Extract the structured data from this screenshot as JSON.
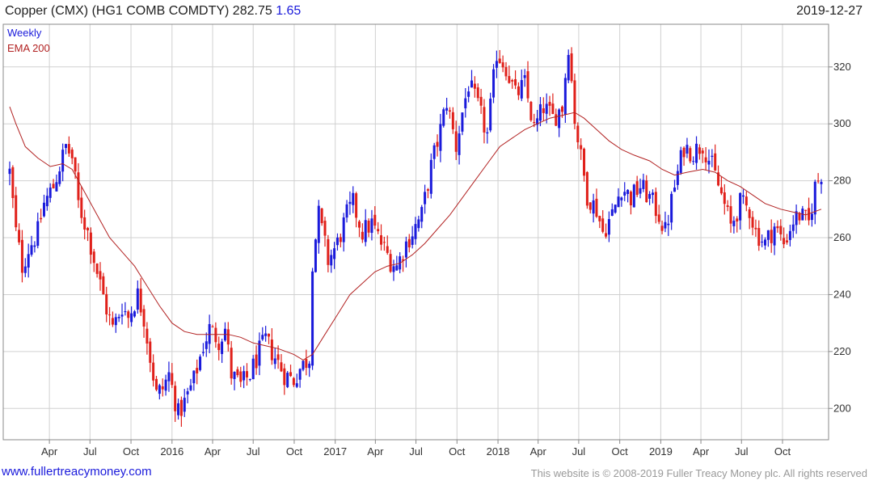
{
  "header": {
    "title": "Copper (CMX) (HG1 COMB COMDTY) 282.75",
    "change": "1.65",
    "date": "2019-12-27"
  },
  "footer": {
    "site": "www.fullertreacymoney.com",
    "copyright": "This website is © 2008-2019 Fuller Treacy Money plc. All rights reserved"
  },
  "colors": {
    "up": "#1a1adb",
    "down": "#e0201a",
    "ema": "#b22222",
    "grid": "#d0d0d0"
  },
  "chart_data": {
    "type": "candlestick",
    "frequency": "Weekly",
    "legend": [
      {
        "label": "Weekly",
        "color": "#1a1adb"
      },
      {
        "label": "EMA 200",
        "color": "#b22222"
      }
    ],
    "legend_position": "top-left",
    "y_axis_position": "right",
    "ylim": [
      189,
      335
    ],
    "y_ticks": [
      200,
      220,
      240,
      260,
      280,
      300,
      320
    ],
    "x_range": [
      "2015-01-02",
      "2019-12-27"
    ],
    "x_ticks": [
      {
        "date": "2015-04-01",
        "label": "Apr"
      },
      {
        "date": "2015-07-01",
        "label": "Jul"
      },
      {
        "date": "2015-10-01",
        "label": "Oct"
      },
      {
        "date": "2016-01-01",
        "label": "2016"
      },
      {
        "date": "2016-04-01",
        "label": "Apr"
      },
      {
        "date": "2016-07-01",
        "label": "Jul"
      },
      {
        "date": "2016-10-01",
        "label": "Oct"
      },
      {
        "date": "2017-01-01",
        "label": "2017"
      },
      {
        "date": "2017-04-01",
        "label": "Apr"
      },
      {
        "date": "2017-07-01",
        "label": "Jul"
      },
      {
        "date": "2017-10-01",
        "label": "Oct"
      },
      {
        "date": "2018-01-01",
        "label": "2018"
      },
      {
        "date": "2018-04-01",
        "label": "Apr"
      },
      {
        "date": "2018-07-01",
        "label": "Jul"
      },
      {
        "date": "2018-10-01",
        "label": "Oct"
      },
      {
        "date": "2019-01-01",
        "label": "2019"
      },
      {
        "date": "2019-04-01",
        "label": "Apr"
      },
      {
        "date": "2019-07-01",
        "label": "Jul"
      },
      {
        "date": "2019-10-01",
        "label": "Oct"
      }
    ],
    "price_path": [
      [
        "2015-01-02",
        283
      ],
      [
        "2015-01-16",
        262
      ],
      [
        "2015-01-30",
        250
      ],
      [
        "2015-02-13",
        256
      ],
      [
        "2015-03-06",
        262
      ],
      [
        "2015-03-20",
        272
      ],
      [
        "2015-04-10",
        278
      ],
      [
        "2015-05-08",
        292
      ],
      [
        "2015-05-22",
        288
      ],
      [
        "2015-06-05",
        272
      ],
      [
        "2015-06-26",
        262
      ],
      [
        "2015-07-17",
        248
      ],
      [
        "2015-08-07",
        235
      ],
      [
        "2015-08-21",
        228
      ],
      [
        "2015-09-11",
        236
      ],
      [
        "2015-09-25",
        232
      ],
      [
        "2015-10-16",
        240
      ],
      [
        "2015-10-30",
        232
      ],
      [
        "2015-11-13",
        218
      ],
      [
        "2015-11-27",
        205
      ],
      [
        "2015-12-11",
        207
      ],
      [
        "2015-12-25",
        212
      ],
      [
        "2016-01-15",
        198
      ],
      [
        "2016-01-29",
        202
      ],
      [
        "2016-02-19",
        210
      ],
      [
        "2016-03-11",
        222
      ],
      [
        "2016-03-25",
        228
      ],
      [
        "2016-04-15",
        224
      ],
      [
        "2016-04-29",
        228
      ],
      [
        "2016-05-13",
        212
      ],
      [
        "2016-06-03",
        208
      ],
      [
        "2016-06-24",
        212
      ],
      [
        "2016-07-15",
        220
      ],
      [
        "2016-07-29",
        224
      ],
      [
        "2016-08-19",
        218
      ],
      [
        "2016-09-09",
        212
      ],
      [
        "2016-09-30",
        210
      ],
      [
        "2016-10-14",
        214
      ],
      [
        "2016-11-04",
        218
      ],
      [
        "2016-11-11",
        252
      ],
      [
        "2016-11-25",
        268
      ],
      [
        "2016-12-16",
        252
      ],
      [
        "2017-01-06",
        258
      ],
      [
        "2017-01-27",
        268
      ],
      [
        "2017-02-10",
        272
      ],
      [
        "2017-03-03",
        262
      ],
      [
        "2017-03-24",
        265
      ],
      [
        "2017-04-14",
        258
      ],
      [
        "2017-05-05",
        252
      ],
      [
        "2017-05-19",
        250
      ],
      [
        "2017-06-09",
        258
      ],
      [
        "2017-06-30",
        264
      ],
      [
        "2017-07-14",
        268
      ],
      [
        "2017-08-04",
        285
      ],
      [
        "2017-08-25",
        298
      ],
      [
        "2017-09-08",
        308
      ],
      [
        "2017-09-29",
        292
      ],
      [
        "2017-10-13",
        304
      ],
      [
        "2017-10-27",
        314
      ],
      [
        "2017-11-17",
        306
      ],
      [
        "2017-12-08",
        296
      ],
      [
        "2017-12-29",
        325
      ],
      [
        "2018-01-19",
        320
      ],
      [
        "2018-02-09",
        310
      ],
      [
        "2018-03-02",
        314
      ],
      [
        "2018-03-23",
        298
      ],
      [
        "2018-04-13",
        306
      ],
      [
        "2018-05-04",
        302
      ],
      [
        "2018-05-25",
        306
      ],
      [
        "2018-06-08",
        328
      ],
      [
        "2018-06-22",
        302
      ],
      [
        "2018-07-06",
        288
      ],
      [
        "2018-07-20",
        275
      ],
      [
        "2018-08-10",
        270
      ],
      [
        "2018-08-24",
        262
      ],
      [
        "2018-09-14",
        268
      ],
      [
        "2018-10-05",
        278
      ],
      [
        "2018-10-26",
        274
      ],
      [
        "2018-11-16",
        278
      ],
      [
        "2018-12-07",
        274
      ],
      [
        "2018-12-28",
        268
      ],
      [
        "2019-01-11",
        262
      ],
      [
        "2019-02-01",
        278
      ],
      [
        "2019-02-22",
        292
      ],
      [
        "2019-03-15",
        290
      ],
      [
        "2019-04-05",
        293
      ],
      [
        "2019-04-26",
        285
      ],
      [
        "2019-05-17",
        275
      ],
      [
        "2019-06-07",
        264
      ],
      [
        "2019-06-28",
        272
      ],
      [
        "2019-07-19",
        270
      ],
      [
        "2019-08-02",
        262
      ],
      [
        "2019-08-23",
        258
      ],
      [
        "2019-09-13",
        264
      ],
      [
        "2019-10-04",
        258
      ],
      [
        "2019-10-25",
        266
      ],
      [
        "2019-11-08",
        268
      ],
      [
        "2019-11-29",
        265
      ],
      [
        "2019-12-13",
        278
      ],
      [
        "2019-12-27",
        282.75
      ]
    ],
    "ema_200": [
      [
        "2015-01-02",
        306
      ],
      [
        "2015-01-16",
        300
      ],
      [
        "2015-02-06",
        292
      ],
      [
        "2015-03-06",
        288
      ],
      [
        "2015-04-03",
        285
      ],
      [
        "2015-05-01",
        286
      ],
      [
        "2015-05-22",
        284
      ],
      [
        "2015-06-19",
        276
      ],
      [
        "2015-07-17",
        268
      ],
      [
        "2015-08-14",
        260
      ],
      [
        "2015-09-11",
        255
      ],
      [
        "2015-10-09",
        250
      ],
      [
        "2015-11-06",
        243
      ],
      [
        "2015-12-04",
        236
      ],
      [
        "2016-01-01",
        230
      ],
      [
        "2016-01-29",
        227
      ],
      [
        "2016-02-26",
        226
      ],
      [
        "2016-04-01",
        226
      ],
      [
        "2016-05-06",
        226
      ],
      [
        "2016-06-03",
        225
      ],
      [
        "2016-07-01",
        223
      ],
      [
        "2016-07-29",
        222
      ],
      [
        "2016-08-26",
        221
      ],
      [
        "2016-09-30",
        219
      ],
      [
        "2016-10-21",
        217
      ],
      [
        "2016-11-11",
        219
      ],
      [
        "2016-12-09",
        226
      ],
      [
        "2017-01-06",
        233
      ],
      [
        "2017-02-03",
        240
      ],
      [
        "2017-03-03",
        244
      ],
      [
        "2017-03-31",
        248
      ],
      [
        "2017-04-28",
        250
      ],
      [
        "2017-05-26",
        251
      ],
      [
        "2017-06-23",
        254
      ],
      [
        "2017-07-21",
        258
      ],
      [
        "2017-08-18",
        263
      ],
      [
        "2017-09-15",
        268
      ],
      [
        "2017-10-13",
        274
      ],
      [
        "2017-11-10",
        280
      ],
      [
        "2017-12-08",
        286
      ],
      [
        "2018-01-05",
        292
      ],
      [
        "2018-02-02",
        295
      ],
      [
        "2018-03-02",
        298
      ],
      [
        "2018-03-30",
        300
      ],
      [
        "2018-04-27",
        302
      ],
      [
        "2018-05-25",
        303
      ],
      [
        "2018-06-22",
        304
      ],
      [
        "2018-07-13",
        302
      ],
      [
        "2018-08-10",
        298
      ],
      [
        "2018-09-07",
        294
      ],
      [
        "2018-10-05",
        291
      ],
      [
        "2018-11-02",
        289
      ],
      [
        "2018-12-07",
        287
      ],
      [
        "2019-01-04",
        284
      ],
      [
        "2019-02-01",
        282
      ],
      [
        "2019-03-01",
        283
      ],
      [
        "2019-04-05",
        284
      ],
      [
        "2019-05-03",
        283
      ],
      [
        "2019-05-31",
        280
      ],
      [
        "2019-06-28",
        278
      ],
      [
        "2019-07-26",
        275
      ],
      [
        "2019-08-23",
        272
      ],
      [
        "2019-09-27",
        270
      ],
      [
        "2019-10-25",
        269
      ],
      [
        "2019-11-22",
        268
      ],
      [
        "2019-12-27",
        270
      ]
    ]
  }
}
